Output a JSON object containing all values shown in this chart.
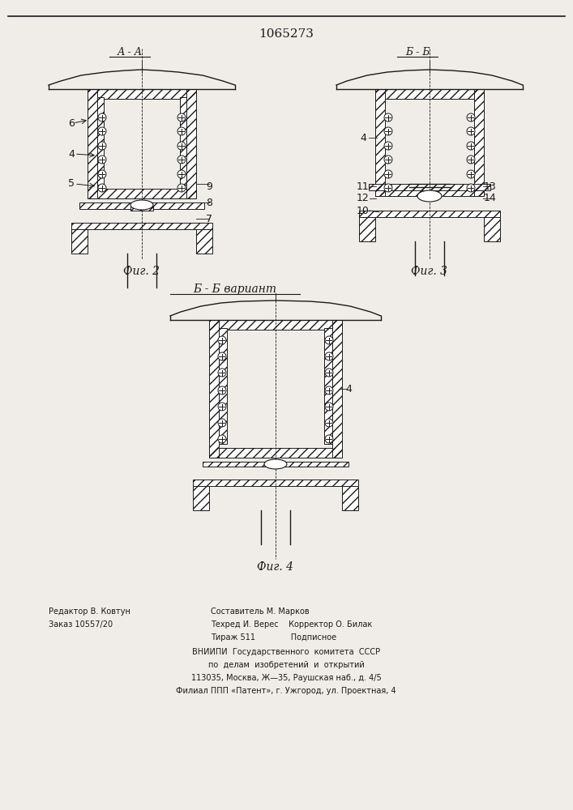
{
  "title": "1065273",
  "title_fontsize": 11,
  "bg_color": "#f0ede8",
  "line_color": "#1a1a1a",
  "hatch_color": "#1a1a1a",
  "fig2_label": "А - А",
  "fig3_label": "Б - Б",
  "fig4_label": "Б - Б вариант",
  "fig2_caption": "Фиг. 2",
  "fig3_caption": "Фиг. 3",
  "fig4_caption": "Фиг. 4",
  "footer_lines": [
    [
      "Редактор В. Ковтун",
      "Составитель М. Марков",
      ""
    ],
    [
      "Заказ 10557/20",
      "Техред И. Верес    Корректор О. Билак",
      ""
    ],
    [
      "",
      "Тираж 511              Подписное",
      ""
    ],
    [
      "ВНИИПИ  Государственного  комитета  СССР"
    ],
    [
      "по  делам  изобретений  и  открытий"
    ],
    [
      "113035, Москва, Ж—35, Раушская наб., д. 4/5"
    ],
    [
      "Филиал ППП «Патент», г. Ужгород, ул. Проектная, 4"
    ]
  ]
}
